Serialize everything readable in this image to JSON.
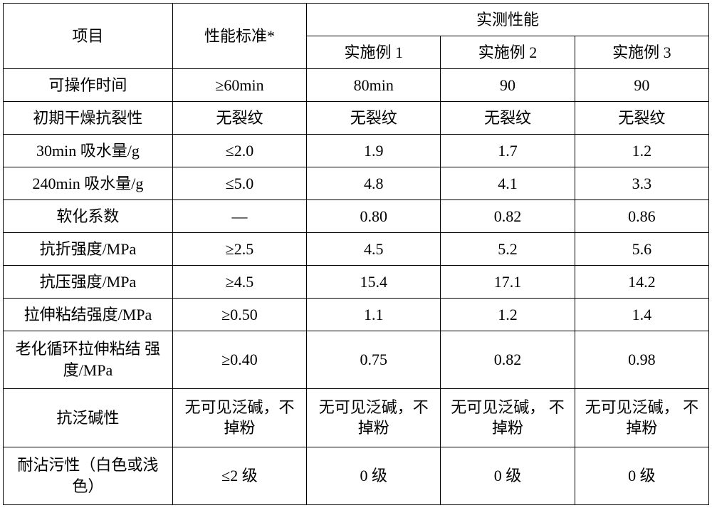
{
  "table": {
    "type": "table",
    "border_color": "#000000",
    "background_color": "#ffffff",
    "text_color": "#000000",
    "font_size_pt": 16,
    "header": {
      "item_label": "项目",
      "standard_label": "性能标准*",
      "measured_group_label": "实测性能",
      "example_labels": [
        "实施例 1",
        "实施例 2",
        "实施例 3"
      ]
    },
    "column_widths_pct": [
      24,
      19,
      19,
      19,
      19
    ],
    "rows": [
      {
        "item": "可操作时间",
        "standard": "≥60min",
        "v": [
          "80min",
          "90",
          "90"
        ]
      },
      {
        "item": "初期干燥抗裂性",
        "standard": "无裂纹",
        "v": [
          "无裂纹",
          "无裂纹",
          "无裂纹"
        ]
      },
      {
        "item": "30min 吸水量/g",
        "standard": "≤2.0",
        "v": [
          "1.9",
          "1.7",
          "1.2"
        ]
      },
      {
        "item": "240min 吸水量/g",
        "standard": "≤5.0",
        "v": [
          "4.8",
          "4.1",
          "3.3"
        ]
      },
      {
        "item": "软化系数",
        "standard": "—",
        "v": [
          "0.80",
          "0.82",
          "0.86"
        ]
      },
      {
        "item": "抗折强度/MPa",
        "standard": "≥2.5",
        "v": [
          "4.5",
          "5.2",
          "5.6"
        ]
      },
      {
        "item": "抗压强度/MPa",
        "standard": "≥4.5",
        "v": [
          "15.4",
          "17.1",
          "14.2"
        ]
      },
      {
        "item": "拉伸粘结强度/MPa",
        "standard": "≥0.50",
        "v": [
          "1.1",
          "1.2",
          "1.4"
        ]
      },
      {
        "item": "老化循环拉伸粘结\n强度/MPa",
        "standard": "≥0.40",
        "v": [
          "0.75",
          "0.82",
          "0.98"
        ]
      },
      {
        "item": "抗泛碱性",
        "standard": "无可见泛碱，不\n掉粉",
        "v": [
          "无可见泛碱，不\n掉粉",
          "无可见泛碱，\n不掉粉",
          "无可见泛碱，\n不掉粉"
        ]
      },
      {
        "item": "耐沾污性（白色或浅\n色）",
        "standard": "≤2 级",
        "v": [
          "0 级",
          "0 级",
          "0 级"
        ]
      }
    ]
  }
}
